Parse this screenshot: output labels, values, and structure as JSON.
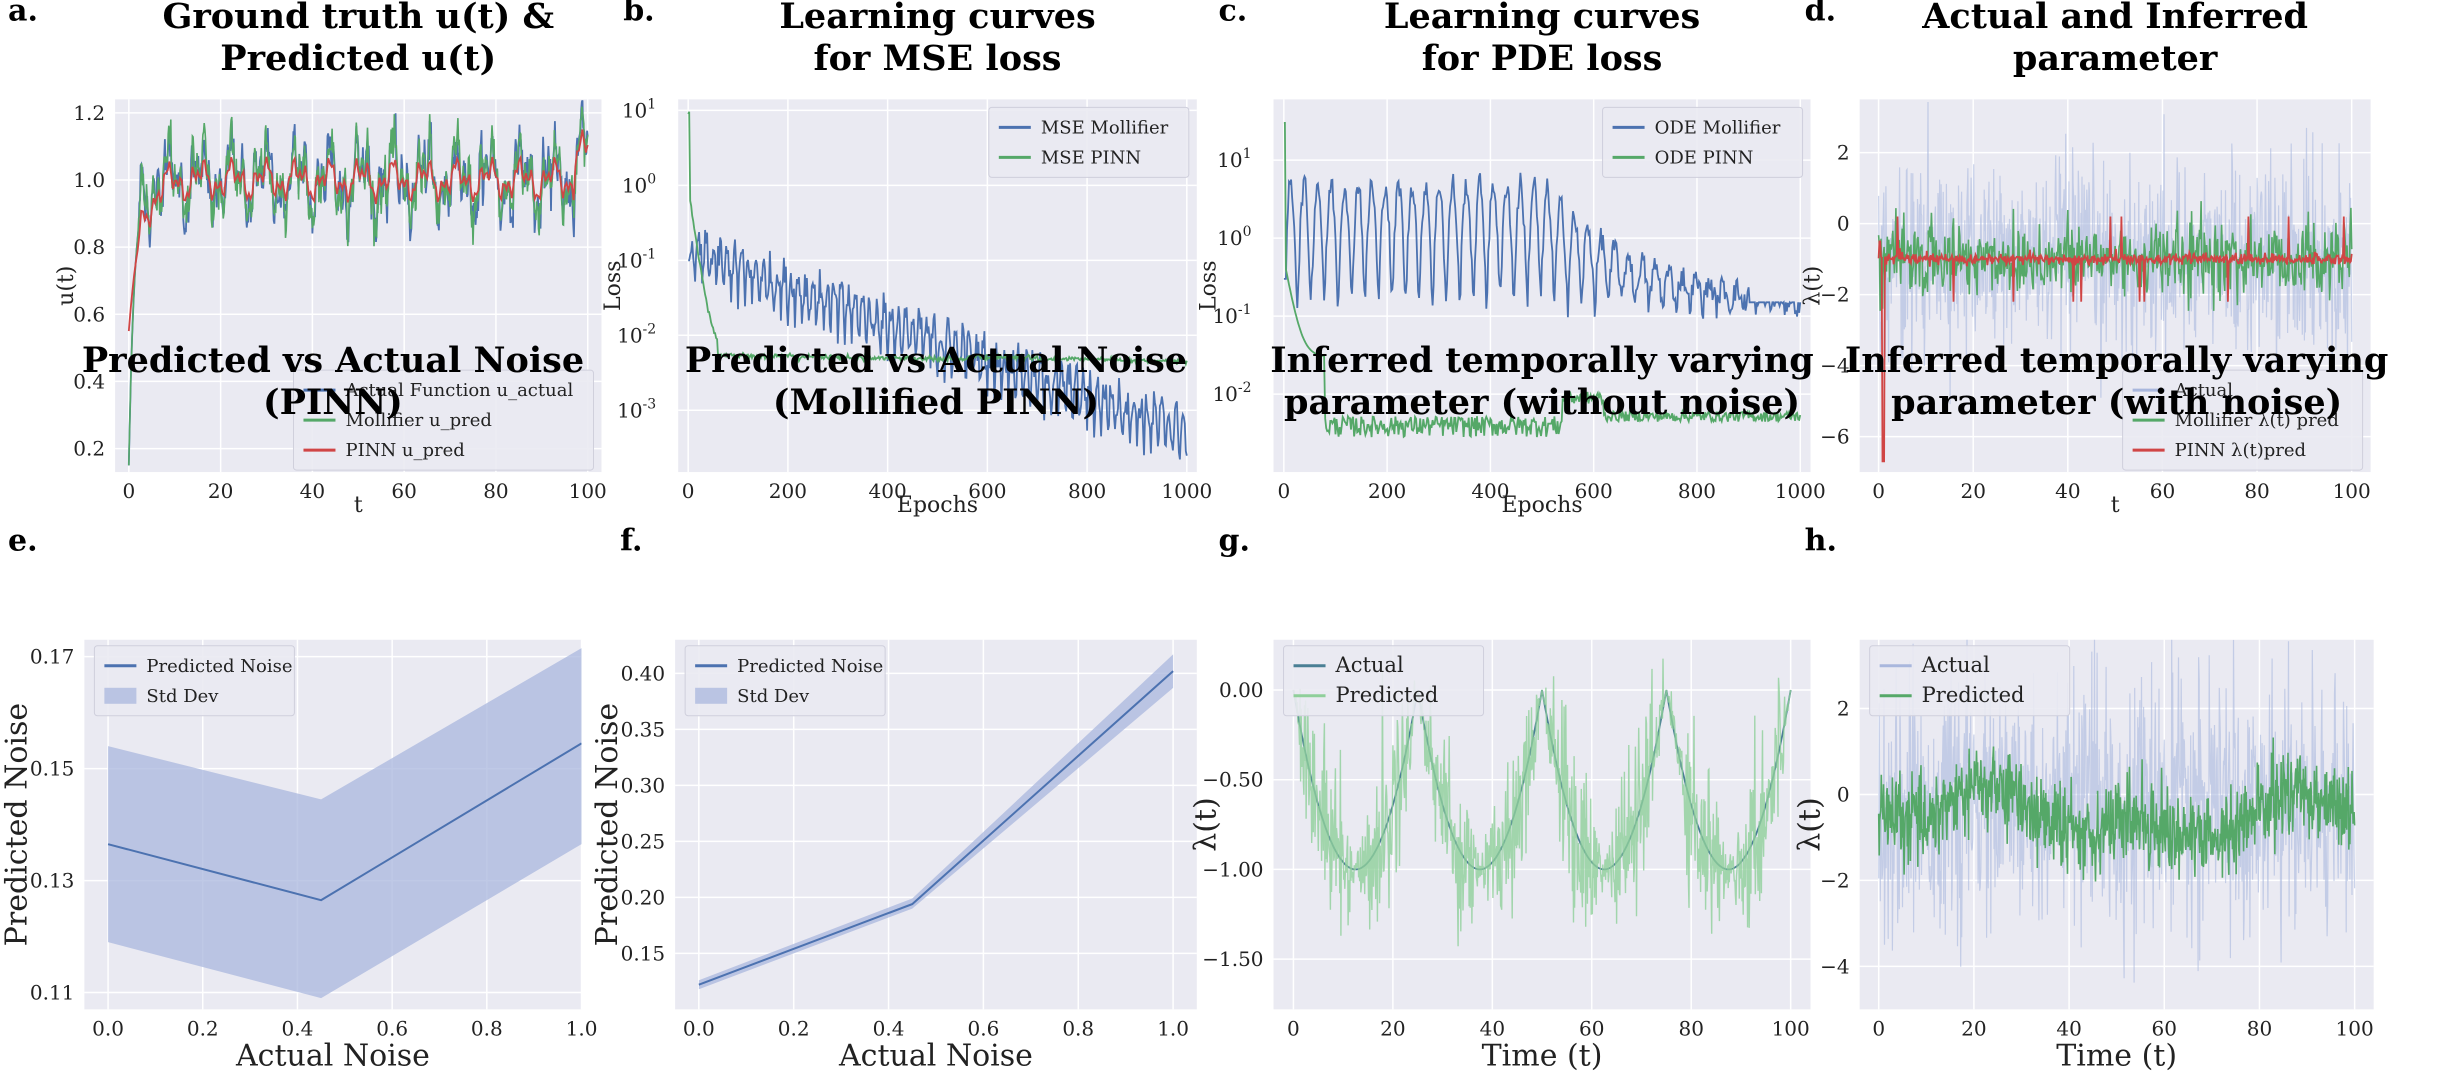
{
  "colors": {
    "blue": "#4c72b0",
    "green": "#55a868",
    "red": "#d04545",
    "lightblue": "#a9b7dd",
    "lightgreen": "#8fcf9a",
    "teal": "#4a7f94",
    "axes_bg": "#eaeaf2",
    "grid": "#ffffff"
  },
  "panels": [
    {
      "label": "a.",
      "title": [
        "Ground truth u(t) &",
        "Predicted u(t)"
      ],
      "chart_data": {
        "type": "line",
        "xlabel": "t",
        "ylabel": "u(t)",
        "xlim": [
          -3,
          103
        ],
        "ylim": [
          0.13,
          1.24
        ],
        "xticks": [
          0,
          20,
          40,
          60,
          80,
          100
        ],
        "yticks": [
          0.2,
          0.4,
          0.6,
          0.8,
          1.0,
          1.2
        ],
        "ytick_labels": [
          "0.2",
          "0.4",
          "0.6",
          "0.8",
          "1.0",
          "1.2"
        ],
        "grid": true,
        "legend": "lower-right",
        "series": [
          {
            "name": "Actual Function u_actual",
            "color": "#4c72b0",
            "gen": "u_actual"
          },
          {
            "name": "Mollifier u_pred",
            "color": "#55a868",
            "gen": "u_moll"
          },
          {
            "name": "PINN u_pred",
            "color": "#d04545",
            "gen": "u_pinn"
          }
        ]
      }
    },
    {
      "label": "b.",
      "title": [
        "Learning curves",
        "for MSE loss"
      ],
      "chart_data": {
        "type": "line",
        "xlabel": "Epochs",
        "ylabel": "Loss",
        "log": true,
        "xlim": [
          -20,
          1020
        ],
        "ylim": [
          0.00015,
          14
        ],
        "xticks": [
          0,
          200,
          400,
          600,
          800,
          1000
        ],
        "yticks": [
          0.001,
          0.01,
          0.1,
          1,
          10
        ],
        "ytick_labels": [
          "10^-3",
          "10^-2",
          "10^-1",
          "10^0",
          "10^1"
        ],
        "grid": true,
        "legend": "upper-right",
        "series": [
          {
            "name": "MSE Mollifier",
            "color": "#4c72b0",
            "gen": "mse_moll"
          },
          {
            "name": "MSE PINN",
            "color": "#55a868",
            "gen": "mse_pinn"
          }
        ]
      }
    },
    {
      "label": "c.",
      "title": [
        "Learning curves",
        "for PDE loss"
      ],
      "chart_data": {
        "type": "line",
        "xlabel": "Epochs",
        "ylabel": "Loss",
        "log": true,
        "xlim": [
          -20,
          1020
        ],
        "ylim": [
          0.001,
          60
        ],
        "xticks": [
          0,
          200,
          400,
          600,
          800,
          1000
        ],
        "yticks": [
          0.01,
          0.1,
          1,
          10
        ],
        "ytick_labels": [
          "10^-2",
          "10^-1",
          "10^0",
          "10^1"
        ],
        "grid": true,
        "legend": "upper-right",
        "series": [
          {
            "name": "ODE Mollifier",
            "color": "#4c72b0",
            "gen": "ode_moll"
          },
          {
            "name": "ODE PINN",
            "color": "#55a868",
            "gen": "ode_pinn"
          }
        ]
      }
    },
    {
      "label": "d.",
      "title": [
        "Actual and Inferred",
        "parameter"
      ],
      "chart_data": {
        "type": "line",
        "xlabel": "t",
        "ylabel": "λ(t)",
        "xlim": [
          -4,
          104
        ],
        "ylim": [
          -7,
          3.5
        ],
        "xticks": [
          0,
          20,
          40,
          60,
          80,
          100
        ],
        "yticks": [
          -6,
          -4,
          -2,
          0,
          2
        ],
        "ytick_labels": [
          "−6",
          "−4",
          "−2",
          "0",
          "2"
        ],
        "grid": true,
        "legend": "lower-right",
        "series": [
          {
            "name": "Actual",
            "color": "#a9b7dd",
            "gen": "lam_actual"
          },
          {
            "name": "Mollifier λ(t) pred",
            "color": "#55a868",
            "gen": "lam_moll"
          },
          {
            "name": "PINN  λ(t)pred",
            "color": "#d04545",
            "gen": "lam_pinn"
          }
        ]
      }
    },
    {
      "label": "e.",
      "title": [
        "Predicted vs Actual Noise",
        "(PINN)"
      ],
      "chart_data": {
        "type": "area",
        "xlabel": "Actual Noise",
        "ylabel": "Predicted Noise",
        "xlim": [
          -0.05,
          1.0
        ],
        "ylim": [
          0.107,
          0.173
        ],
        "xticks": [
          0,
          0.2,
          0.4,
          0.6,
          0.8,
          1.0
        ],
        "yticks": [
          0.11,
          0.13,
          0.15,
          0.17
        ],
        "ytick_labels": [
          "0.11",
          "0.13",
          "0.15",
          "0.17"
        ],
        "grid": true,
        "legend": "upper-left",
        "x": [
          0,
          0.45,
          1.0
        ],
        "mean": [
          0.1365,
          0.1265,
          0.1545
        ],
        "std_low": [
          0.119,
          0.109,
          0.1365
        ],
        "std_high": [
          0.154,
          0.1445,
          0.1715
        ],
        "series": [
          {
            "name": "Predicted Noise",
            "color": "#4c72b0"
          },
          {
            "name": "Std Dev",
            "color": "#a9b7dd"
          }
        ]
      }
    },
    {
      "label": "f.",
      "title": [
        "Predicted vs Actual Noise",
        "(Mollified PINN)"
      ],
      "chart_data": {
        "type": "area",
        "xlabel": "Actual Noise",
        "ylabel": "Predicted Noise",
        "xlim": [
          -0.05,
          1.05
        ],
        "ylim": [
          0.1,
          0.43
        ],
        "xticks": [
          0,
          0.2,
          0.4,
          0.6,
          0.8,
          1.0
        ],
        "yticks": [
          0.15,
          0.2,
          0.25,
          0.3,
          0.35,
          0.4
        ],
        "ytick_labels": [
          "0.15",
          "0.20",
          "0.25",
          "0.30",
          "0.35",
          "0.40"
        ],
        "grid": true,
        "legend": "upper-left",
        "x": [
          0,
          0.45,
          1.0
        ],
        "mean": [
          0.122,
          0.194,
          0.402
        ],
        "std_low": [
          0.118,
          0.19,
          0.387
        ],
        "std_high": [
          0.126,
          0.199,
          0.417
        ],
        "series": [
          {
            "name": "Predicted Noise",
            "color": "#4c72b0"
          },
          {
            "name": "Std Dev",
            "color": "#a9b7dd"
          }
        ]
      }
    },
    {
      "label": "g.",
      "title": [
        "Inferred temporally varying",
        "parameter (without noise)"
      ],
      "chart_data": {
        "type": "line",
        "xlabel": "Time (t)",
        "ylabel": "λ(t)",
        "xlim": [
          -4,
          104
        ],
        "ylim": [
          -1.78,
          0.28
        ],
        "xticks": [
          0,
          20,
          40,
          60,
          80,
          100
        ],
        "yticks": [
          -1.5,
          -1.0,
          -0.5,
          0.0
        ],
        "ytick_labels": [
          "−1.50",
          "−1.00",
          "−0.50",
          "0.00"
        ],
        "grid": true,
        "legend": "upper-left",
        "series": [
          {
            "name": "Actual",
            "color": "#4a7f94",
            "gen": "g_actual"
          },
          {
            "name": "Predicted",
            "color": "#8fcf9a",
            "gen": "g_pred"
          }
        ]
      }
    },
    {
      "label": "h.",
      "title": [
        "Inferred temporally varying",
        "parameter (with noise)"
      ],
      "chart_data": {
        "type": "line",
        "xlabel": "Time (t)",
        "ylabel": "λ(t)",
        "xlim": [
          -4,
          104
        ],
        "ylim": [
          -5,
          3.6
        ],
        "xticks": [
          0,
          20,
          40,
          60,
          80,
          100
        ],
        "yticks": [
          -4,
          -2,
          0,
          2
        ],
        "ytick_labels": [
          "−4",
          "−2",
          "0",
          "2"
        ],
        "grid": true,
        "legend": "upper-left",
        "series": [
          {
            "name": "Actual",
            "color": "#a9b7dd",
            "gen": "h_actual"
          },
          {
            "name": "Predicted",
            "color": "#55a868",
            "gen": "h_pred"
          }
        ]
      }
    }
  ]
}
